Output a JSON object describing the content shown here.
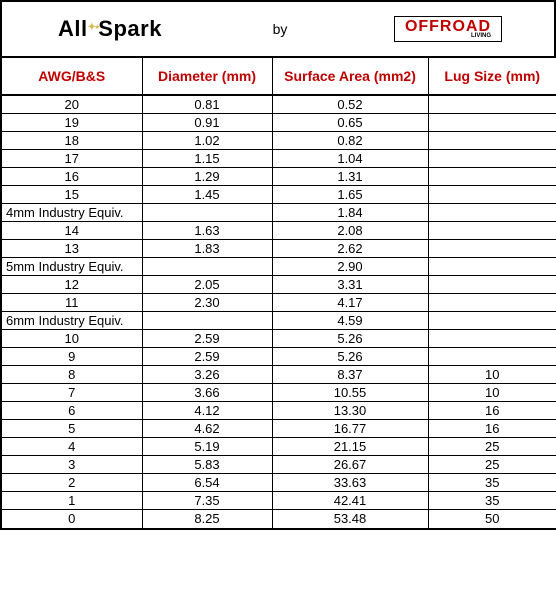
{
  "header": {
    "brand1": "AllSpark",
    "by_label": "by",
    "brand2": "OFFROAD",
    "brand2_sub": "LIVING"
  },
  "table": {
    "columns": [
      {
        "label": "AWG/B&S"
      },
      {
        "label": "Diameter (mm)"
      },
      {
        "label": "Surface Area (mm2)"
      },
      {
        "label": "Lug Size (mm)"
      }
    ],
    "header_color": "#c00000",
    "border_color": "#000000",
    "font_size_header": 14,
    "font_size_body": 13,
    "rows": [
      {
        "awg": "20",
        "awg_align": "center",
        "dia": "0.81",
        "area": "0.52",
        "lug": ""
      },
      {
        "awg": "19",
        "awg_align": "center",
        "dia": "0.91",
        "area": "0.65",
        "lug": ""
      },
      {
        "awg": "18",
        "awg_align": "center",
        "dia": "1.02",
        "area": "0.82",
        "lug": ""
      },
      {
        "awg": "17",
        "awg_align": "center",
        "dia": "1.15",
        "area": "1.04",
        "lug": ""
      },
      {
        "awg": "16",
        "awg_align": "center",
        "dia": "1.29",
        "area": "1.31",
        "lug": ""
      },
      {
        "awg": "15",
        "awg_align": "center",
        "dia": "1.45",
        "area": "1.65",
        "lug": ""
      },
      {
        "awg": "4mm Industry Equiv.",
        "awg_align": "left",
        "dia": "",
        "area": "1.84",
        "lug": ""
      },
      {
        "awg": "14",
        "awg_align": "center",
        "dia": "1.63",
        "area": "2.08",
        "lug": ""
      },
      {
        "awg": "13",
        "awg_align": "center",
        "dia": "1.83",
        "area": "2.62",
        "lug": ""
      },
      {
        "awg": "5mm Industry Equiv.",
        "awg_align": "left",
        "dia": "",
        "area": "2.90",
        "lug": ""
      },
      {
        "awg": "12",
        "awg_align": "center",
        "dia": "2.05",
        "area": "3.31",
        "lug": ""
      },
      {
        "awg": "11",
        "awg_align": "center",
        "dia": "2.30",
        "area": "4.17",
        "lug": ""
      },
      {
        "awg": "6mm Industry Equiv.",
        "awg_align": "left",
        "dia": "",
        "area": "4.59",
        "lug": ""
      },
      {
        "awg": "10",
        "awg_align": "center",
        "dia": "2.59",
        "area": "5.26",
        "lug": ""
      },
      {
        "awg": "9",
        "awg_align": "center",
        "dia": "2.59",
        "area": "5.26",
        "lug": ""
      },
      {
        "awg": "8",
        "awg_align": "center",
        "dia": "3.26",
        "area": "8.37",
        "lug": "10"
      },
      {
        "awg": "7",
        "awg_align": "center",
        "dia": "3.66",
        "area": "10.55",
        "lug": "10"
      },
      {
        "awg": "6",
        "awg_align": "center",
        "dia": "4.12",
        "area": "13.30",
        "lug": "16"
      },
      {
        "awg": "5",
        "awg_align": "center",
        "dia": "4.62",
        "area": "16.77",
        "lug": "16"
      },
      {
        "awg": "4",
        "awg_align": "center",
        "dia": "5.19",
        "area": "21.15",
        "lug": "25"
      },
      {
        "awg": "3",
        "awg_align": "center",
        "dia": "5.83",
        "area": "26.67",
        "lug": "25"
      },
      {
        "awg": "2",
        "awg_align": "center",
        "dia": "6.54",
        "area": "33.63",
        "lug": "35"
      },
      {
        "awg": "1",
        "awg_align": "center",
        "dia": "7.35",
        "area": "42.41",
        "lug": "35"
      },
      {
        "awg": "0",
        "awg_align": "center",
        "dia": "8.25",
        "area": "53.48",
        "lug": "50"
      }
    ]
  },
  "colors": {
    "brand2_text": "#c00000",
    "spark_accent": "#d6b94e",
    "page_border": "#000000",
    "background": "#ffffff"
  }
}
